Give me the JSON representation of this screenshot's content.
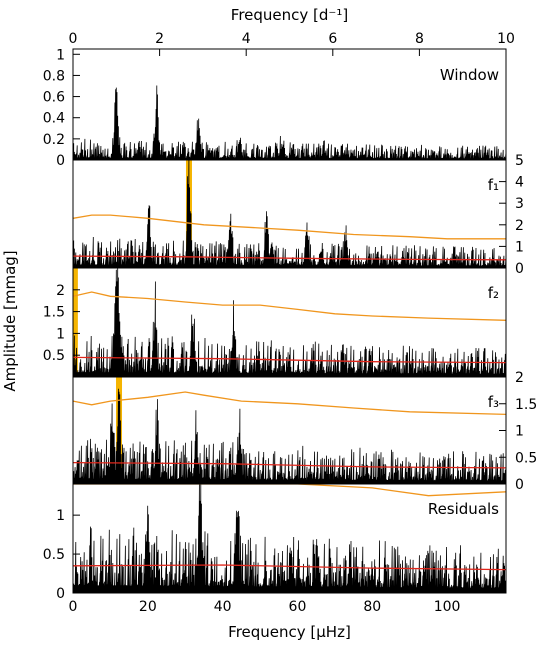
{
  "chart_data": {
    "type": "line",
    "top_axis": {
      "label": "Frequency [d⁻¹]",
      "ticks": [
        "0",
        "2",
        "4",
        "6",
        "8",
        "10"
      ],
      "range": [
        0,
        10
      ]
    },
    "bottom_axis": {
      "label": "Frequency [μHz]",
      "ticks": [
        "0",
        "20",
        "40",
        "60",
        "80",
        "100"
      ],
      "range": [
        0,
        115.74
      ]
    },
    "ylabel": "Amplitude [mmag]",
    "panels": [
      {
        "label": "Window",
        "ylim": [
          0,
          1.05
        ],
        "ticks": [
          "0",
          "0.2",
          "0.4",
          "0.6",
          "0.8",
          "1"
        ],
        "tick_values": [
          0,
          0.2,
          0.4,
          0.6,
          0.8,
          1
        ],
        "tick_side": "left",
        "noise_level": 0.09,
        "peaks": [
          [
            11.6,
            0.75
          ],
          [
            22.4,
            0.55
          ],
          [
            33.6,
            0.38
          ],
          [
            44.6,
            0.16
          ],
          [
            55.8,
            0.1
          ],
          [
            67.0,
            0.06
          ]
        ],
        "threshold": [],
        "noise": [],
        "highlight": null
      },
      {
        "label": "f₁",
        "ylim": [
          0,
          5.0
        ],
        "ticks": [
          "0",
          "1",
          "2",
          "3",
          "4",
          "5"
        ],
        "tick_values": [
          0,
          1,
          2,
          3,
          4,
          5
        ],
        "tick_side": "right",
        "noise_level": 0.65,
        "peaks": [
          [
            31.0,
            4.8
          ],
          [
            20.3,
            3.0
          ],
          [
            42.0,
            2.1
          ],
          [
            51.8,
            2.5
          ],
          [
            62.5,
            1.8
          ],
          [
            73.0,
            1.3
          ]
        ],
        "threshold": [
          [
            0,
            2.3
          ],
          [
            5,
            2.45
          ],
          [
            10,
            2.45
          ],
          [
            20,
            2.3
          ],
          [
            35,
            2.0
          ],
          [
            50,
            1.85
          ],
          [
            60,
            1.75
          ],
          [
            75,
            1.55
          ],
          [
            90,
            1.45
          ],
          [
            100,
            1.35
          ],
          [
            115.74,
            1.35
          ]
        ],
        "noise": [
          [
            0,
            0.55
          ],
          [
            30,
            0.52
          ],
          [
            60,
            0.45
          ],
          [
            90,
            0.4
          ],
          [
            115.74,
            0.38
          ]
        ],
        "highlight": 31.0
      },
      {
        "label": "f₂",
        "ylim": [
          0,
          2.5
        ],
        "ticks": [
          "0.5",
          "1",
          "1.5",
          "2"
        ],
        "tick_values": [
          0.5,
          1,
          1.5,
          2
        ],
        "tick_side": "left",
        "noise_level": 0.45,
        "peaks": [
          [
            11.5,
            2.1
          ],
          [
            12.4,
            1.45
          ],
          [
            22.0,
            1.4
          ],
          [
            32.0,
            1.2
          ],
          [
            43.0,
            1.1
          ]
        ],
        "threshold": [
          [
            0,
            1.85
          ],
          [
            5,
            1.95
          ],
          [
            10,
            1.85
          ],
          [
            20,
            1.8
          ],
          [
            30,
            1.72
          ],
          [
            40,
            1.65
          ],
          [
            50,
            1.65
          ],
          [
            60,
            1.55
          ],
          [
            70,
            1.45
          ],
          [
            80,
            1.4
          ],
          [
            95,
            1.35
          ],
          [
            115.74,
            1.3
          ]
        ],
        "noise": [
          [
            0,
            0.45
          ],
          [
            40,
            0.42
          ],
          [
            80,
            0.35
          ],
          [
            115.74,
            0.33
          ]
        ],
        "highlight": 0.5
      },
      {
        "label": "f₃",
        "ylim": [
          0,
          2.0
        ],
        "ticks": [
          "0",
          "0.5",
          "1",
          "1.5",
          "2"
        ],
        "tick_values": [
          0,
          0.5,
          1,
          1.5,
          2
        ],
        "tick_side": "right",
        "noise_level": 0.4,
        "peaks": [
          [
            12.3,
            1.8
          ],
          [
            10.5,
            1.1
          ],
          [
            22.5,
            1.0
          ],
          [
            33.0,
            0.9
          ],
          [
            44.5,
            0.85
          ]
        ],
        "threshold": [
          [
            0,
            1.55
          ],
          [
            5,
            1.48
          ],
          [
            10,
            1.55
          ],
          [
            20,
            1.62
          ],
          [
            30,
            1.72
          ],
          [
            35,
            1.66
          ],
          [
            45,
            1.55
          ],
          [
            60,
            1.5
          ],
          [
            75,
            1.42
          ],
          [
            90,
            1.35
          ],
          [
            115.74,
            1.3
          ]
        ],
        "noise": [
          [
            0,
            0.4
          ],
          [
            40,
            0.38
          ],
          [
            80,
            0.32
          ],
          [
            115.74,
            0.3
          ]
        ],
        "highlight": 12.3
      },
      {
        "label": "Residuals",
        "ylim": [
          0,
          1.4
        ],
        "ticks": [
          "0",
          "0.5",
          "1"
        ],
        "tick_values": [
          0,
          0.5,
          1
        ],
        "tick_side": "left",
        "noise_level": 0.4,
        "peaks": [
          [
            34.0,
            1.25
          ],
          [
            44.0,
            1.1
          ],
          [
            20.0,
            1.0
          ]
        ],
        "threshold": [
          [
            0,
            1.75
          ],
          [
            30,
            1.8
          ],
          [
            60,
            1.55
          ],
          [
            80,
            1.35
          ],
          [
            95,
            1.25
          ],
          [
            115.74,
            1.3
          ]
        ],
        "noise": [
          [
            0,
            0.35
          ],
          [
            40,
            0.36
          ],
          [
            80,
            0.32
          ],
          [
            115.74,
            0.3
          ]
        ],
        "highlight": null
      }
    ],
    "colors": {
      "spectrum": "#000000",
      "threshold": "#f0961e",
      "noise": "#e0261b",
      "highlight": "#f5b400"
    }
  }
}
